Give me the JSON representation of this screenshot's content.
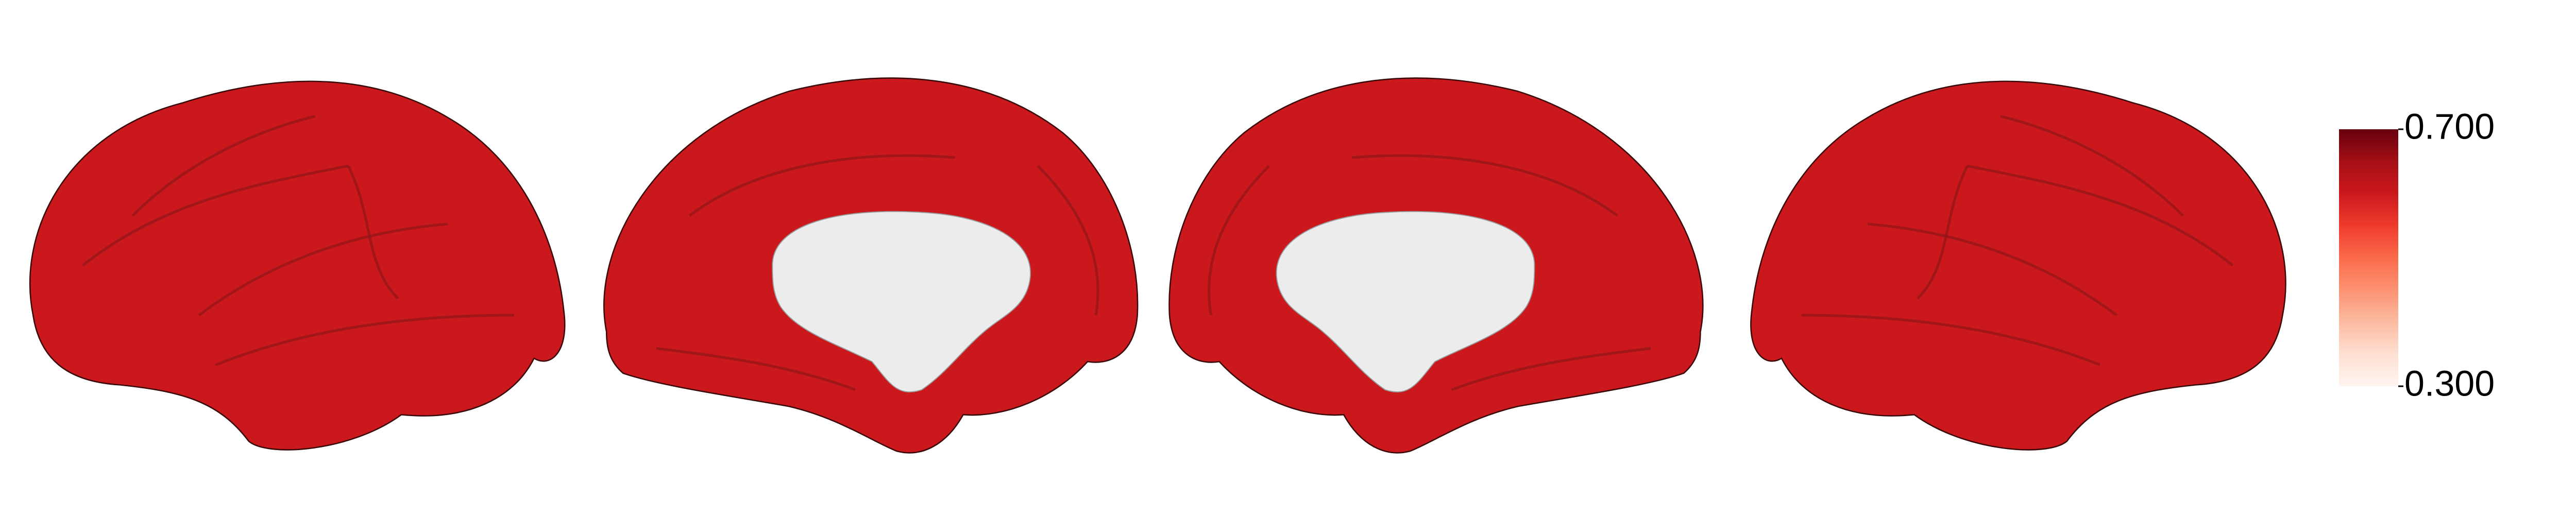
{
  "chart_data": {
    "type": "surface",
    "value": 0.6,
    "clim": [
      0.3,
      0.7
    ],
    "cticks": [
      {
        "value": 0.3,
        "label": "0.300"
      },
      {
        "value": 0.7,
        "label": "0.700"
      }
    ],
    "cmap": [
      "#fff5f0",
      "#fee0d2",
      "#fcbba1",
      "#fc9272",
      "#fb6a4a",
      "#ef3b2c",
      "#cb181d",
      "#a50f15",
      "#67000d"
    ],
    "medial_color": "#ececec"
  }
}
